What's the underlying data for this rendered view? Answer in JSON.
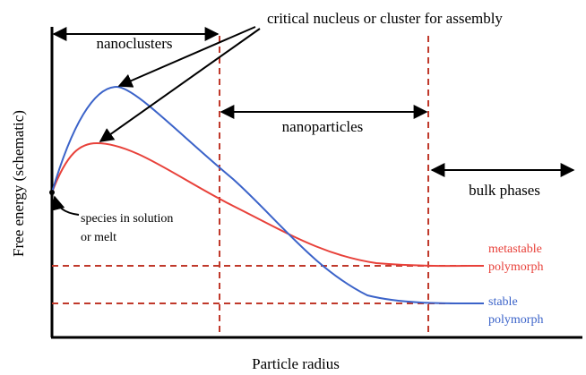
{
  "title": "critical nucleus or cluster for assembly",
  "regions": [
    "nanoclusters",
    "nanoparticles",
    "bulk phases"
  ],
  "start_label": [
    "species in solution",
    "or melt"
  ],
  "curves": [
    {
      "label": [
        "metastable",
        "polymorph"
      ],
      "color": "#e8413a"
    },
    {
      "label": [
        "stable",
        "polymorph"
      ],
      "color": "#3b63c9"
    }
  ],
  "axes": {
    "y": "Free energy (schematic)",
    "x": "Particle radius"
  }
}
